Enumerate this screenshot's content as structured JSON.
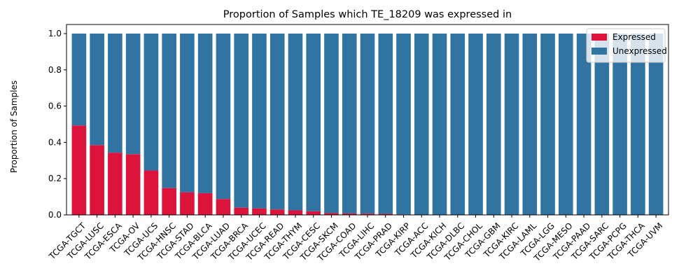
{
  "chart_data": {
    "type": "bar",
    "stacked": true,
    "title": "Proportion of Samples which TE_18209 was expressed in",
    "xlabel": "",
    "ylabel": "Proportion of Samples",
    "ylim": [
      0,
      1.05
    ],
    "yticks": [
      "0.0",
      "0.2",
      "0.4",
      "0.6",
      "0.8",
      "1.0"
    ],
    "grid": false,
    "legend_position": "top-right",
    "categories": [
      "TCGA-TGCT",
      "TCGA-LUSC",
      "TCGA-ESCA",
      "TCGA-OV",
      "TCGA-UCS",
      "TCGA-HNSC",
      "TCGA-STAD",
      "TCGA-BLCA",
      "TCGA-LUAD",
      "TCGA-BRCA",
      "TCGA-UCEC",
      "TCGA-READ",
      "TCGA-THYM",
      "TCGA-CESC",
      "TCGA-SKCM",
      "TCGA-COAD",
      "TCGA-LIHC",
      "TCGA-PRAD",
      "TCGA-KIRP",
      "TCGA-ACC",
      "TCGA-KICH",
      "TCGA-DLBC",
      "TCGA-CHOL",
      "TCGA-GBM",
      "TCGA-KIRC",
      "TCGA-LAML",
      "TCGA-LGG",
      "TCGA-MESO",
      "TCGA-PAAD",
      "TCGA-SARC",
      "TCGA-PCPG",
      "TCGA-THCA",
      "TCGA-UVM"
    ],
    "series": [
      {
        "name": "Expressed",
        "color": "#dc143c",
        "values": [
          0.493,
          0.385,
          0.343,
          0.335,
          0.245,
          0.148,
          0.125,
          0.12,
          0.088,
          0.04,
          0.036,
          0.03,
          0.025,
          0.02,
          0.01,
          0.008,
          0.007,
          0.006,
          0.003,
          0,
          0,
          0,
          0,
          0,
          0,
          0,
          0,
          0,
          0,
          0,
          0,
          0,
          0
        ]
      },
      {
        "name": "Unexpressed",
        "color": "#3274a1",
        "values": [
          0.507,
          0.615,
          0.657,
          0.665,
          0.755,
          0.852,
          0.875,
          0.88,
          0.912,
          0.96,
          0.964,
          0.97,
          0.975,
          0.98,
          0.99,
          0.992,
          0.993,
          0.994,
          0.997,
          1,
          1,
          1,
          1,
          1,
          1,
          1,
          1,
          1,
          1,
          1,
          1,
          1,
          1
        ]
      }
    ]
  }
}
